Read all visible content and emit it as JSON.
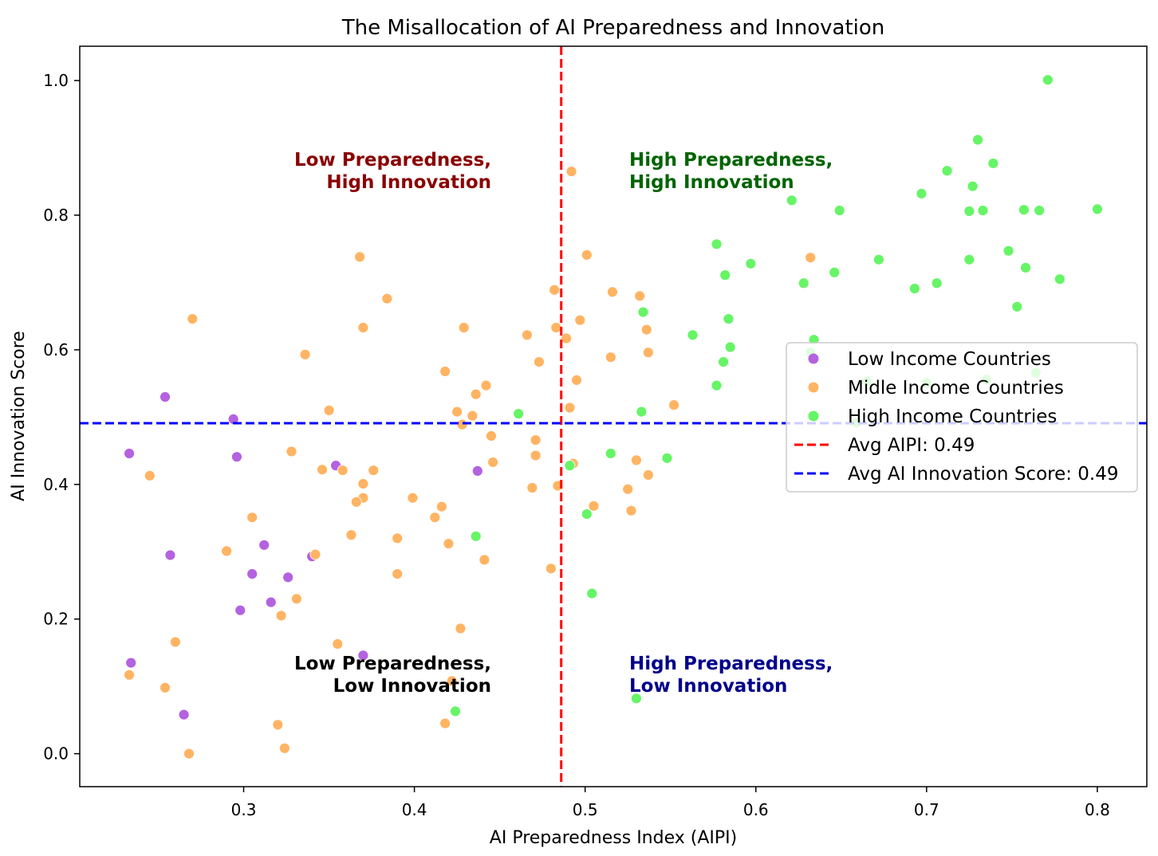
{
  "chart_data": {
    "type": "scatter",
    "title": "The Misallocation of AI Preparedness and Innovation",
    "xlabel": "AI Preparedness Index (AIPI)",
    "ylabel": "AI Innovation Score",
    "xlim": [
      0.204,
      0.829
    ],
    "ylim": [
      -0.049,
      1.051
    ],
    "xticks": [
      "0.3",
      "0.4",
      "0.5",
      "0.6",
      "0.7",
      "0.8"
    ],
    "yticks": [
      "0.0",
      "0.2",
      "0.4",
      "0.6",
      "0.8",
      "1.0"
    ],
    "grid": false,
    "legend_placement": "center-right",
    "avg_aipi": 0.486,
    "avg_innovation": 0.491,
    "avg_lines": [
      {
        "label": "Avg AIPI: 0.49",
        "color": "#ff0000",
        "orientation": "vertical"
      },
      {
        "label": "Avg AI Innovation Score: 0.49",
        "color": "#0000ff",
        "orientation": "horizontal"
      }
    ],
    "annotations": [
      {
        "lines": [
          "Low Preparedness,",
          "High Innovation"
        ],
        "color": "#8b0000",
        "quadrant": "top-left"
      },
      {
        "lines": [
          "High Preparedness,",
          "High Innovation"
        ],
        "color": "#006400",
        "quadrant": "top-right"
      },
      {
        "lines": [
          "Low Preparedness,",
          "Low Innovation"
        ],
        "color": "#000000",
        "quadrant": "bottom-left"
      },
      {
        "lines": [
          "High Preparedness,",
          "Low Innovation"
        ],
        "color": "#00008b",
        "quadrant": "bottom-right"
      }
    ],
    "series": [
      {
        "name": "Low Income Countries",
        "color": "#b462e0",
        "points": [
          [
            0.254,
            0.53
          ],
          [
            0.294,
            0.497
          ],
          [
            0.233,
            0.446
          ],
          [
            0.296,
            0.441
          ],
          [
            0.354,
            0.428
          ],
          [
            0.437,
            0.42
          ],
          [
            0.257,
            0.295
          ],
          [
            0.312,
            0.31
          ],
          [
            0.305,
            0.267
          ],
          [
            0.34,
            0.293
          ],
          [
            0.326,
            0.262
          ],
          [
            0.316,
            0.225
          ],
          [
            0.298,
            0.213
          ],
          [
            0.37,
            0.146
          ],
          [
            0.234,
            0.135
          ],
          [
            0.265,
            0.058
          ]
        ]
      },
      {
        "name": "Midle Income Countries",
        "color": "#ffb463",
        "points": [
          [
            0.492,
            0.865
          ],
          [
            0.368,
            0.738
          ],
          [
            0.501,
            0.741
          ],
          [
            0.384,
            0.676
          ],
          [
            0.27,
            0.646
          ],
          [
            0.482,
            0.689
          ],
          [
            0.516,
            0.686
          ],
          [
            0.532,
            0.68
          ],
          [
            0.37,
            0.633
          ],
          [
            0.429,
            0.633
          ],
          [
            0.483,
            0.633
          ],
          [
            0.536,
            0.63
          ],
          [
            0.466,
            0.622
          ],
          [
            0.489,
            0.617
          ],
          [
            0.497,
            0.644
          ],
          [
            0.336,
            0.593
          ],
          [
            0.537,
            0.596
          ],
          [
            0.515,
            0.589
          ],
          [
            0.473,
            0.582
          ],
          [
            0.418,
            0.568
          ],
          [
            0.495,
            0.555
          ],
          [
            0.442,
            0.547
          ],
          [
            0.436,
            0.534
          ],
          [
            0.552,
            0.518
          ],
          [
            0.35,
            0.51
          ],
          [
            0.491,
            0.514
          ],
          [
            0.425,
            0.508
          ],
          [
            0.434,
            0.502
          ],
          [
            0.428,
            0.489
          ],
          [
            0.445,
            0.472
          ],
          [
            0.471,
            0.466
          ],
          [
            0.328,
            0.449
          ],
          [
            0.471,
            0.443
          ],
          [
            0.53,
            0.436
          ],
          [
            0.245,
            0.413
          ],
          [
            0.346,
            0.422
          ],
          [
            0.358,
            0.421
          ],
          [
            0.376,
            0.421
          ],
          [
            0.446,
            0.433
          ],
          [
            0.493,
            0.431
          ],
          [
            0.537,
            0.414
          ],
          [
            0.37,
            0.401
          ],
          [
            0.469,
            0.395
          ],
          [
            0.484,
            0.398
          ],
          [
            0.525,
            0.393
          ],
          [
            0.37,
            0.38
          ],
          [
            0.366,
            0.374
          ],
          [
            0.399,
            0.38
          ],
          [
            0.416,
            0.367
          ],
          [
            0.505,
            0.368
          ],
          [
            0.412,
            0.351
          ],
          [
            0.305,
            0.351
          ],
          [
            0.527,
            0.361
          ],
          [
            0.363,
            0.325
          ],
          [
            0.39,
            0.32
          ],
          [
            0.42,
            0.312
          ],
          [
            0.29,
            0.301
          ],
          [
            0.342,
            0.296
          ],
          [
            0.441,
            0.288
          ],
          [
            0.39,
            0.267
          ],
          [
            0.48,
            0.275
          ],
          [
            0.331,
            0.23
          ],
          [
            0.322,
            0.205
          ],
          [
            0.427,
            0.186
          ],
          [
            0.26,
            0.166
          ],
          [
            0.355,
            0.163
          ],
          [
            0.422,
            0.108
          ],
          [
            0.233,
            0.117
          ],
          [
            0.254,
            0.098
          ],
          [
            0.32,
            0.043
          ],
          [
            0.418,
            0.045
          ],
          [
            0.324,
            0.008
          ],
          [
            0.268,
            0.0
          ],
          [
            0.632,
            0.737
          ]
        ]
      },
      {
        "name": "High Income Countries",
        "color": "#66f566",
        "points": [
          [
            0.771,
            1.001
          ],
          [
            0.73,
            0.912
          ],
          [
            0.712,
            0.866
          ],
          [
            0.739,
            0.877
          ],
          [
            0.727,
            0.843
          ],
          [
            0.697,
            0.832
          ],
          [
            0.621,
            0.822
          ],
          [
            0.649,
            0.807
          ],
          [
            0.725,
            0.806
          ],
          [
            0.733,
            0.807
          ],
          [
            0.757,
            0.808
          ],
          [
            0.766,
            0.807
          ],
          [
            0.8,
            0.809
          ],
          [
            0.577,
            0.757
          ],
          [
            0.748,
            0.747
          ],
          [
            0.672,
            0.734
          ],
          [
            0.597,
            0.728
          ],
          [
            0.725,
            0.734
          ],
          [
            0.758,
            0.722
          ],
          [
            0.582,
            0.711
          ],
          [
            0.646,
            0.715
          ],
          [
            0.628,
            0.699
          ],
          [
            0.706,
            0.699
          ],
          [
            0.693,
            0.691
          ],
          [
            0.778,
            0.705
          ],
          [
            0.534,
            0.656
          ],
          [
            0.753,
            0.664
          ],
          [
            0.563,
            0.622
          ],
          [
            0.584,
            0.646
          ],
          [
            0.634,
            0.615
          ],
          [
            0.585,
            0.604
          ],
          [
            0.581,
            0.582
          ],
          [
            0.577,
            0.547
          ],
          [
            0.632,
            0.596
          ],
          [
            0.533,
            0.508
          ],
          [
            0.461,
            0.505
          ],
          [
            0.764,
            0.566
          ],
          [
            0.735,
            0.556
          ],
          [
            0.7,
            0.551
          ],
          [
            0.665,
            0.553
          ],
          [
            0.659,
            0.492
          ],
          [
            0.515,
            0.446
          ],
          [
            0.548,
            0.439
          ],
          [
            0.491,
            0.428
          ],
          [
            0.436,
            0.323
          ],
          [
            0.501,
            0.356
          ],
          [
            0.504,
            0.238
          ],
          [
            0.424,
            0.063
          ],
          [
            0.53,
            0.082
          ]
        ]
      }
    ]
  }
}
